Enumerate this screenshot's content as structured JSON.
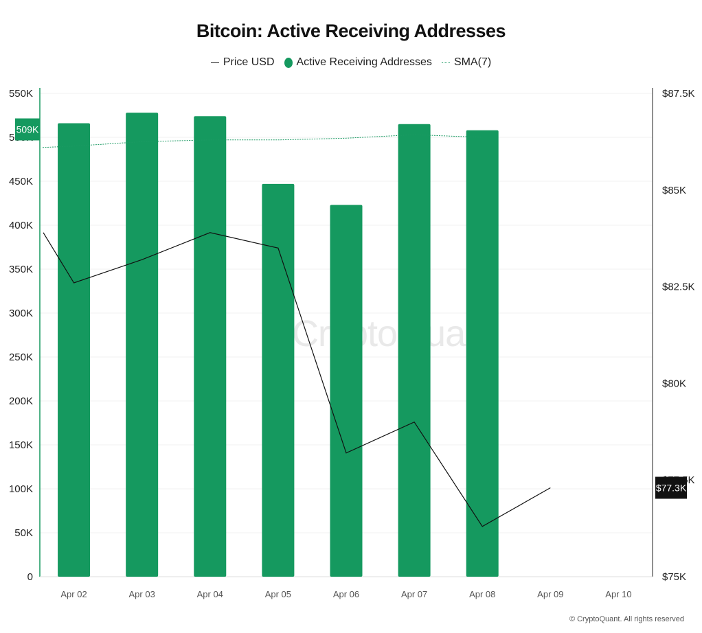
{
  "title": "Bitcoin: Active Receiving Addresses",
  "legend": {
    "price": "Price USD",
    "addresses": "Active Receiving Addresses",
    "sma": "SMA(7)"
  },
  "footer": "© CryptoQuant. All rights reserved",
  "watermark": "CryptoQuant",
  "colors": {
    "bar": "#15995f",
    "price": "#111111",
    "sma": "#1b9a63",
    "badge_left": "#15995f",
    "badge_right": "#111111"
  },
  "chart_data": {
    "type": "bar",
    "categories": [
      "Apr 02",
      "Apr 03",
      "Apr 04",
      "Apr 05",
      "Apr 06",
      "Apr 07",
      "Apr 08",
      "Apr 09",
      "Apr 10"
    ],
    "series": [
      {
        "name": "Active Receiving Addresses",
        "type": "bar",
        "axis": "left",
        "values": [
          516000,
          528000,
          524000,
          447000,
          423000,
          515000,
          508000,
          null,
          null
        ]
      },
      {
        "name": "Price USD",
        "type": "line",
        "axis": "right",
        "values": [
          83900,
          82600,
          83200,
          83900,
          83500,
          78200,
          79000,
          76300,
          77300
        ]
      },
      {
        "name": "SMA(7)",
        "type": "line",
        "style": "dotted",
        "axis": "left",
        "values": [
          490000,
          495000,
          497000,
          497000,
          499000,
          503000,
          500000,
          null,
          null
        ]
      }
    ],
    "left_axis": {
      "ticks": [
        "0",
        "50K",
        "100K",
        "150K",
        "200K",
        "250K",
        "300K",
        "350K",
        "400K",
        "450K",
        "500K",
        "550K"
      ],
      "range": [
        0,
        550000
      ]
    },
    "right_axis": {
      "ticks": [
        "$75K",
        "$77.5K",
        "$80K",
        "$82.5K",
        "$85K",
        "$87.5K"
      ],
      "range": [
        75000,
        87500
      ]
    },
    "badges": {
      "left": "509K",
      "right": "$77.3K"
    },
    "grid": true,
    "legend_position": "top"
  }
}
